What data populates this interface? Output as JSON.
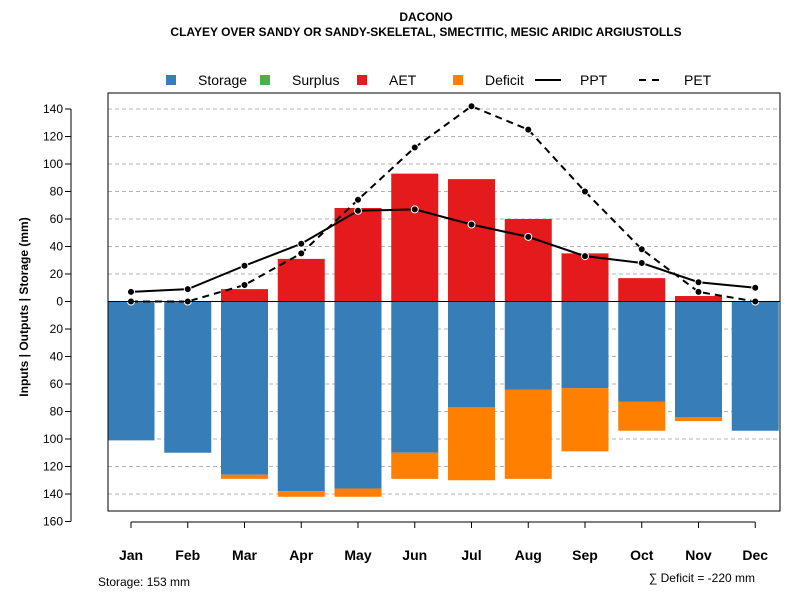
{
  "chart_data": {
    "type": "bar",
    "title": "DACONO",
    "subtitle": "CLAYEY OVER SANDY OR SANDY-SKELETAL, SMECTITIC, MESIC ARIDIC ARGIUSTOLLS",
    "ylabel": "Inputs | Outputs | Storage    (mm)",
    "categories": [
      "Jan",
      "Feb",
      "Mar",
      "Apr",
      "May",
      "Jun",
      "Jul",
      "Aug",
      "Sep",
      "Oct",
      "Nov",
      "Dec"
    ],
    "y_ticks_up": [
      0,
      20,
      40,
      60,
      80,
      100,
      120,
      140
    ],
    "y_ticks_down": [
      20,
      40,
      60,
      80,
      100,
      120,
      140,
      160
    ],
    "ylim": [
      -160,
      145
    ],
    "grid": true,
    "legend": {
      "position": "top",
      "items": [
        {
          "label": "Storage",
          "kind": "box",
          "color": "#377EB8"
        },
        {
          "label": "Surplus",
          "kind": "box",
          "color": "#4DAF4A"
        },
        {
          "label": "AET",
          "kind": "box",
          "color": "#E41A1C"
        },
        {
          "label": "Deficit",
          "kind": "box",
          "color": "#FF7F00"
        },
        {
          "label": "PPT",
          "kind": "solid-line",
          "color": "#000000"
        },
        {
          "label": "PET",
          "kind": "dashed-line",
          "color": "#000000"
        }
      ]
    },
    "series": [
      {
        "name": "AET",
        "color": "#E41A1C",
        "direction": "up",
        "values": [
          0,
          0,
          9,
          31,
          68,
          93,
          89,
          60,
          35,
          17,
          4,
          0
        ]
      },
      {
        "name": "Surplus",
        "color": "#4DAF4A",
        "direction": "up",
        "values": [
          0,
          0,
          0,
          0,
          0,
          0,
          0,
          0,
          0,
          0,
          0,
          0
        ]
      },
      {
        "name": "Storage",
        "color": "#377EB8",
        "direction": "down",
        "values": [
          101,
          110,
          126,
          138,
          136,
          110,
          77,
          64,
          63,
          73,
          84,
          94
        ]
      },
      {
        "name": "Deficit",
        "color": "#FF7F00",
        "direction": "down",
        "values": [
          0,
          0,
          3,
          4,
          6,
          19,
          53,
          65,
          46,
          21,
          3,
          0
        ]
      },
      {
        "name": "PPT",
        "color": "#000000",
        "style": "solid",
        "values": [
          7,
          9,
          26,
          42,
          66,
          67,
          56,
          47,
          33,
          28,
          14,
          10
        ]
      },
      {
        "name": "PET",
        "color": "#000000",
        "style": "dashed",
        "values": [
          0,
          0,
          12,
          35,
          74,
          112,
          142,
          125,
          80,
          38,
          7,
          0
        ]
      }
    ],
    "annotations": {
      "storage": "Storage: 153 mm",
      "deficit": "∑ Deficit = -220 mm"
    }
  }
}
